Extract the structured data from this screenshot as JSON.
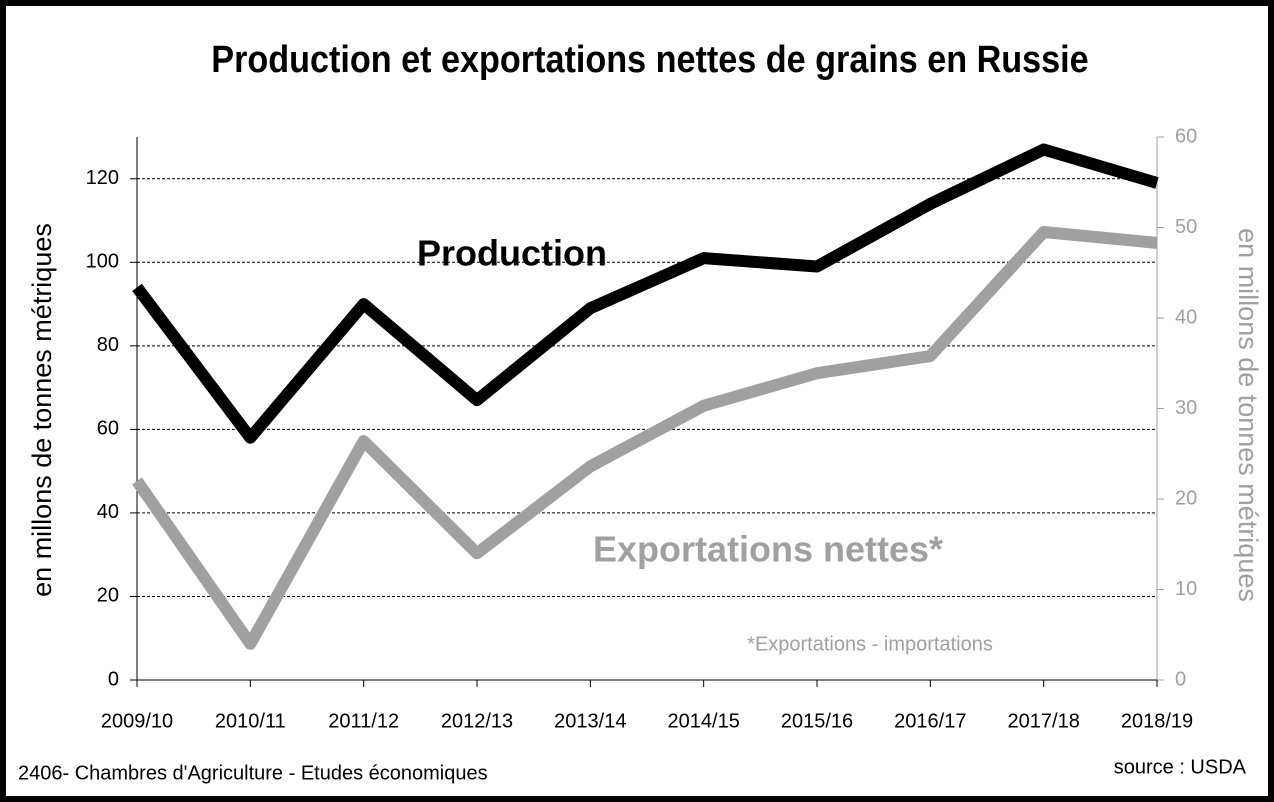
{
  "chart_data": {
    "type": "line",
    "title": "Production et exportations nettes de grains en Russie",
    "ylabel": "en millons de tonnes métriques",
    "y2label": "en millons de tonnes métriques",
    "categories": [
      "2009/10",
      "2010/11",
      "2011/12",
      "2012/13",
      "2013/14",
      "2014/15",
      "2015/16",
      "2016/17",
      "2017/18",
      "2018/19"
    ],
    "series": [
      {
        "name": "Production",
        "color": "#000000",
        "values": [
          94,
          58,
          90,
          67,
          89,
          101,
          99,
          114,
          127,
          119
        ]
      },
      {
        "name": "Exportations nettes*",
        "color": "#a0a0a0",
        "axis": "y2",
        "values": [
          22,
          4,
          26.4,
          14,
          23.6,
          30.3,
          33.9,
          35.8,
          49.5,
          48.3
        ]
      }
    ],
    "ylim": [
      0,
      130
    ],
    "yticks": [
      0,
      20,
      40,
      60,
      80,
      100,
      120
    ],
    "y2lim": [
      0,
      60
    ],
    "y2ticks": [
      0,
      10,
      20,
      30,
      40,
      50,
      60
    ],
    "grid": true,
    "annotations": [
      "*Exportations - importations"
    ],
    "footer": "2406- Chambres d'Agriculture - Etudes économiques",
    "source": "source : USDA"
  }
}
